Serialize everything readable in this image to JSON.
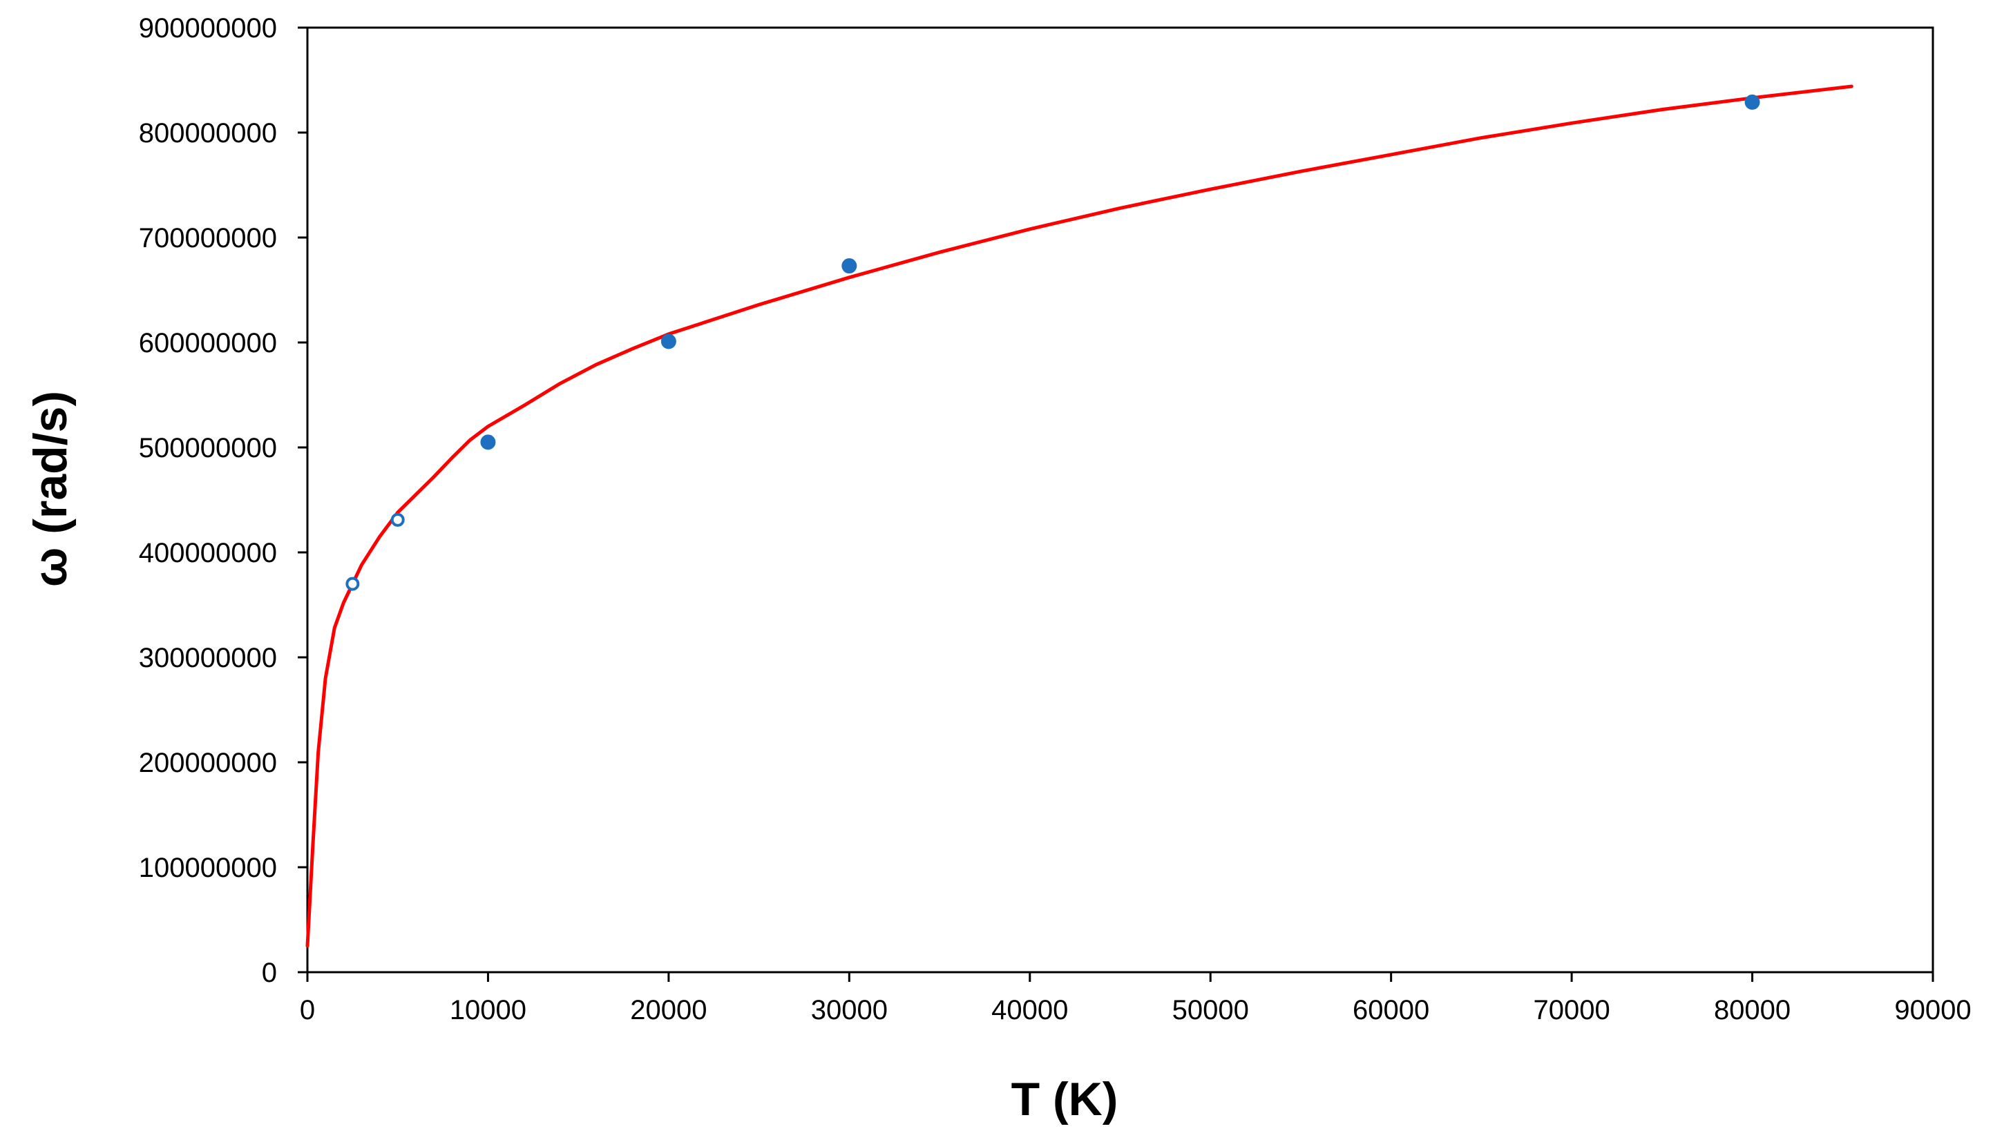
{
  "chart_data": {
    "type": "scatter",
    "title": "",
    "xlabel": "T (K)",
    "ylabel": "ω (rad/s)",
    "xlim": [
      0,
      90000
    ],
    "ylim": [
      0,
      900000000
    ],
    "x_ticks": [
      0,
      10000,
      20000,
      30000,
      40000,
      50000,
      60000,
      70000,
      80000,
      90000
    ],
    "x_tick_labels": [
      "0",
      "10000",
      "20000",
      "30000",
      "40000",
      "50000",
      "60000",
      "70000",
      "80000",
      "90000"
    ],
    "y_ticks": [
      0,
      100000000,
      200000000,
      300000000,
      400000000,
      500000000,
      600000000,
      700000000,
      800000000,
      900000000
    ],
    "y_tick_labels": [
      "0",
      "100000000",
      "200000000",
      "300000000",
      "400000000",
      "500000000",
      "600000000",
      "700000000",
      "800000000",
      "900000000"
    ],
    "grid": false,
    "legend": "none",
    "series": [
      {
        "kind": "points",
        "marker": "open-circle",
        "color": "#1F6FC0",
        "x": [
          2500,
          5000
        ],
        "y": [
          370000000,
          431000000
        ]
      },
      {
        "kind": "points",
        "marker": "filled-circle",
        "color": "#1F6FC0",
        "x": [
          10000,
          20000,
          30000,
          80000
        ],
        "y": [
          505000000,
          601000000,
          673000000,
          829000000
        ]
      },
      {
        "kind": "line",
        "color": "#FF0000",
        "x": [
          0,
          300,
          600,
          1000,
          1500,
          2000,
          2500,
          3000,
          4000,
          5000,
          6000,
          7000,
          8000,
          9000,
          10000,
          12000,
          14000,
          16000,
          18000,
          20000,
          25000,
          30000,
          35000,
          40000,
          45000,
          50000,
          55000,
          60000,
          65000,
          70000,
          75000,
          80000,
          85500
        ],
        "y": [
          25000000,
          120000000,
          210000000,
          280000000,
          328000000,
          352000000,
          370000000,
          388000000,
          415000000,
          438000000,
          455000000,
          472000000,
          490000000,
          507000000,
          520000000,
          540000000,
          561000000,
          579000000,
          594000000,
          608000000,
          636000000,
          662000000,
          686000000,
          708000000,
          728000000,
          746000000,
          763000000,
          779000000,
          795000000,
          809000000,
          822000000,
          833000000,
          844000000
        ]
      }
    ]
  }
}
